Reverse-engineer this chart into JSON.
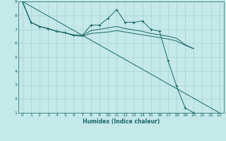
{
  "xlabel": "Humidex (Indice chaleur)",
  "bg_color": "#c5e8e8",
  "grid_color": "#a8d0d0",
  "line_color": "#1a6868",
  "xlim": [
    -0.5,
    23.5
  ],
  "ylim": [
    1,
    9
  ],
  "xticks": [
    0,
    1,
    2,
    3,
    4,
    5,
    6,
    7,
    8,
    9,
    10,
    11,
    12,
    13,
    14,
    15,
    16,
    17,
    18,
    19,
    20,
    21,
    22,
    23
  ],
  "yticks": [
    1,
    2,
    3,
    4,
    5,
    6,
    7,
    8,
    9
  ],
  "lines": [
    {
      "x": [
        0,
        1,
        2,
        3,
        4,
        5,
        6,
        7,
        8,
        9,
        10,
        11,
        12,
        13,
        14,
        15,
        16,
        17,
        18,
        19,
        20,
        21,
        22
      ],
      "y": [
        9.0,
        7.5,
        7.2,
        7.05,
        6.85,
        6.75,
        6.55,
        6.55,
        7.3,
        7.3,
        7.8,
        8.4,
        7.5,
        7.5,
        7.6,
        7.0,
        6.85,
        4.75,
        2.9,
        1.35,
        1.0,
        null,
        null
      ],
      "marker": true
    },
    {
      "x": [
        0,
        1,
        2,
        3,
        4,
        5,
        6,
        7,
        8,
        9,
        10,
        11,
        12,
        13,
        14,
        15,
        16,
        17,
        18,
        19,
        20
      ],
      "y": [
        9.0,
        7.5,
        7.2,
        7.05,
        6.85,
        6.75,
        6.6,
        6.55,
        6.9,
        7.0,
        7.1,
        7.2,
        7.05,
        6.95,
        6.85,
        6.7,
        6.6,
        6.5,
        6.35,
        5.9,
        5.6
      ],
      "marker": false
    },
    {
      "x": [
        0,
        1,
        2,
        3,
        4,
        5,
        6,
        7,
        8,
        9,
        10,
        11,
        12,
        13,
        14,
        15,
        16,
        17,
        18,
        19,
        20
      ],
      "y": [
        9.0,
        7.5,
        7.2,
        7.05,
        6.85,
        6.75,
        6.55,
        6.5,
        6.7,
        6.75,
        6.8,
        6.9,
        6.8,
        6.7,
        6.6,
        6.5,
        6.4,
        6.3,
        6.15,
        5.85,
        5.6
      ],
      "marker": false
    },
    {
      "x": [
        0,
        23
      ],
      "y": [
        9.0,
        1.0
      ],
      "marker": false
    }
  ]
}
